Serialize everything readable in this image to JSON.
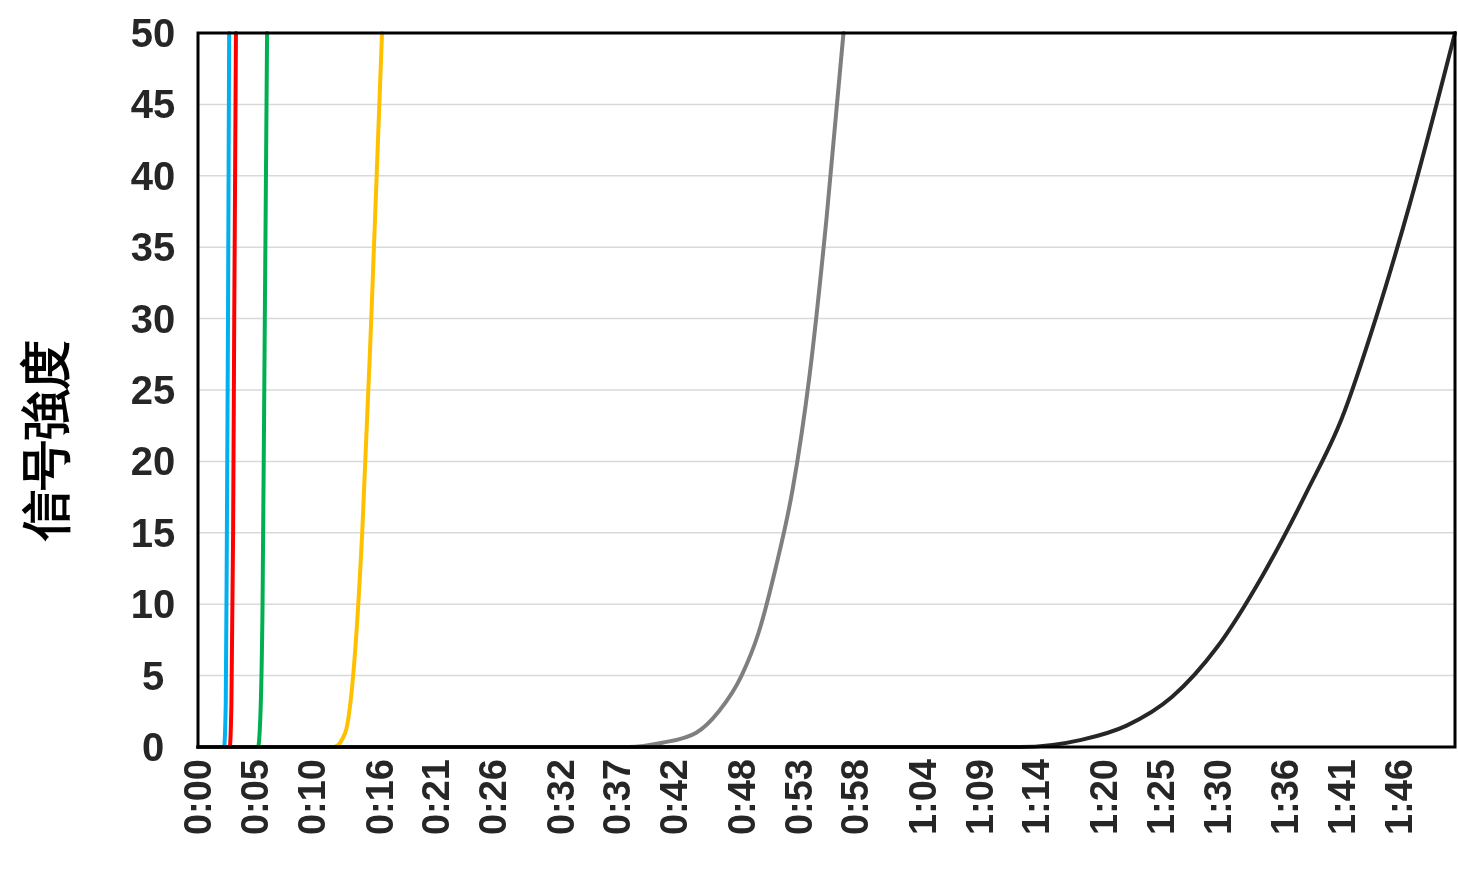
{
  "chart_data": {
    "type": "line",
    "ylabel": "信号強度",
    "xlim": [
      0,
      111
    ],
    "ylim": [
      0,
      50
    ],
    "yticks": [
      0,
      5,
      10,
      15,
      20,
      25,
      30,
      35,
      40,
      45,
      50
    ],
    "xticks": [
      {
        "value": 0,
        "label": "0:00"
      },
      {
        "value": 5,
        "label": "0:05"
      },
      {
        "value": 10,
        "label": "0:10"
      },
      {
        "value": 16,
        "label": "0:16"
      },
      {
        "value": 21,
        "label": "0:21"
      },
      {
        "value": 26,
        "label": "0:26"
      },
      {
        "value": 32,
        "label": "0:32"
      },
      {
        "value": 37,
        "label": "0:37"
      },
      {
        "value": 42,
        "label": "0:42"
      },
      {
        "value": 48,
        "label": "0:48"
      },
      {
        "value": 53,
        "label": "0:53"
      },
      {
        "value": 58,
        "label": "0:58"
      },
      {
        "value": 64,
        "label": "1:04"
      },
      {
        "value": 69,
        "label": "1:09"
      },
      {
        "value": 74,
        "label": "1:14"
      },
      {
        "value": 80,
        "label": "1:20"
      },
      {
        "value": 85,
        "label": "1:25"
      },
      {
        "value": 90,
        "label": "1:30"
      },
      {
        "value": 96,
        "label": "1:36"
      },
      {
        "value": 101,
        "label": "1:41"
      },
      {
        "value": 106,
        "label": "1:46"
      }
    ],
    "grid": "y",
    "marker": "none",
    "line_style": "solid",
    "series": [
      {
        "color": "#ffc000",
        "x": [
          0,
          12,
          13,
          13.7,
          14.5,
          15.3,
          16.25
        ],
        "values": [
          0,
          0,
          1,
          5,
          15,
          30,
          50
        ]
      },
      {
        "color": "#00b050",
        "x": [
          0,
          5.3,
          5.5,
          5.7,
          5.9,
          6.1
        ],
        "values": [
          0,
          0,
          2,
          10,
          30,
          50
        ]
      },
      {
        "color": "#ff0000",
        "x": [
          0,
          2.8,
          2.95,
          3.1,
          3.2,
          3.35
        ],
        "values": [
          0,
          0,
          3,
          15,
          30,
          50
        ]
      },
      {
        "color": "#00b0f0",
        "x": [
          0,
          2.3,
          2.45,
          2.55,
          2.65,
          2.75
        ],
        "values": [
          0,
          0,
          3,
          15,
          30,
          50
        ]
      },
      {
        "color": "#7f7f7f",
        "x": [
          0,
          38,
          41,
          44,
          46,
          48,
          49.5,
          51,
          52.5,
          54,
          55.5,
          57
        ],
        "values": [
          0,
          0,
          0.3,
          1,
          2.5,
          5,
          8,
          12.5,
          18,
          26,
          37,
          50
        ]
      },
      {
        "color": "#262626",
        "x": [
          0,
          72.6,
          78,
          82,
          86,
          90,
          94,
          98,
          101,
          104,
          107,
          111
        ],
        "values": [
          0,
          0,
          0.5,
          1.5,
          3.5,
          7,
          12,
          18,
          23,
          30,
          38,
          50
        ]
      }
    ]
  }
}
